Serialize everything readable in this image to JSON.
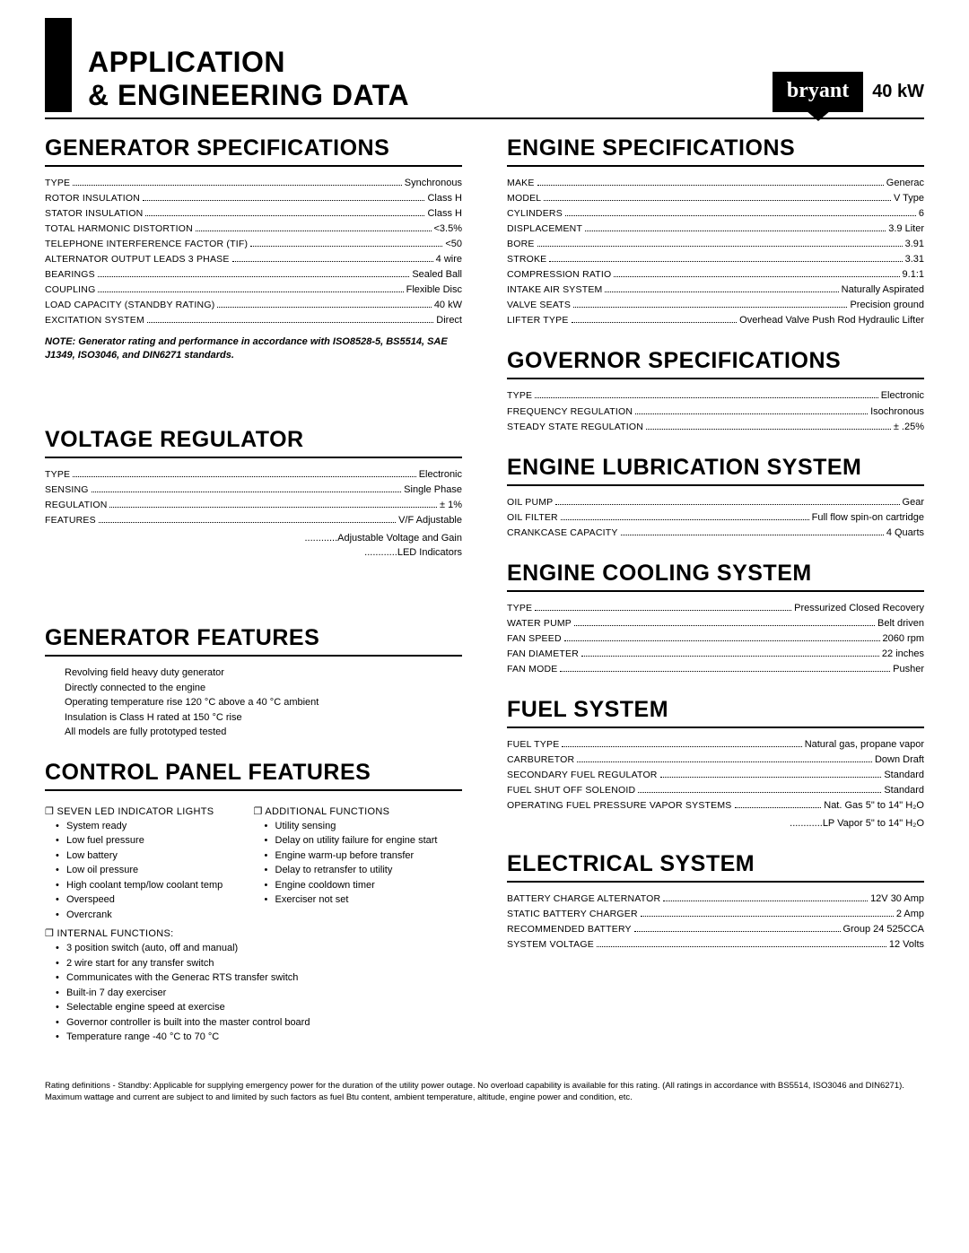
{
  "header": {
    "title_line1": "APPLICATION",
    "title_line2": "& ENGINEERING DATA",
    "logo_text": "bryant",
    "power": "40 kW"
  },
  "left": {
    "sec1_title": "GENERATOR SPECIFICATIONS",
    "sec1_rows": [
      {
        "l": "TYPE",
        "v": "Synchronous"
      },
      {
        "l": "ROTOR INSULATION",
        "v": "Class H"
      },
      {
        "l": "STATOR INSULATION",
        "v": "Class H"
      },
      {
        "l": "TOTAL HARMONIC DISTORTION",
        "v": "<3.5%"
      },
      {
        "l": "TELEPHONE INTERFERENCE FACTOR (TIF)",
        "v": "<50"
      },
      {
        "l": "ALTERNATOR OUTPUT LEADS 3 PHASE",
        "v": "4 wire"
      },
      {
        "l": "BEARINGS",
        "v": "Sealed Ball"
      },
      {
        "l": "COUPLING",
        "v": "Flexible Disc"
      },
      {
        "l": "LOAD CAPACITY (STANDBY RATING)",
        "v": "40 kW"
      },
      {
        "l": "EXCITATION SYSTEM",
        "v": "Direct"
      }
    ],
    "sec1_note": "NOTE: Generator rating and performance in accordance with ISO8528-5, BS5514, SAE J1349, ISO3046, and DIN6271 standards.",
    "sec2_title": "VOLTAGE REGULATOR",
    "sec2_rows": [
      {
        "l": "TYPE",
        "v": "Electronic"
      },
      {
        "l": "SENSING",
        "v": "Single Phase"
      },
      {
        "l": "REGULATION",
        "v": "± 1%"
      },
      {
        "l": "FEATURES",
        "v": "V/F Adjustable"
      }
    ],
    "sec2_cont": [
      "Adjustable Voltage and Gain",
      "LED Indicators"
    ],
    "sec3_title": "GENERATOR FEATURES",
    "sec3_items": [
      "Revolving field heavy duty generator",
      "Directly connected to the engine",
      "Operating temperature rise 120 °C above a 40 °C ambient",
      "Insulation is Class H rated at 150 °C rise",
      "All models are fully prototyped tested"
    ],
    "sec4_title": "CONTROL PANEL FEATURES",
    "sec4_group1_head": "SEVEN LED INDICATOR LIGHTS",
    "sec4_group1_items": [
      "System ready",
      "Low fuel pressure",
      "Low battery",
      "Low oil pressure",
      "High coolant temp/low coolant temp",
      "Overspeed",
      "Overcrank"
    ],
    "sec4_group2_head": "ADDITIONAL FUNCTIONS",
    "sec4_group2_items": [
      "Utility sensing",
      "Delay on utility failure for engine start",
      "Engine warm-up before transfer",
      "Delay to retransfer to utility",
      "Engine cooldown timer",
      "Exerciser not set"
    ],
    "sec4_group3_head": "INTERNAL FUNCTIONS:",
    "sec4_group3_items": [
      "3 position switch (auto, off and manual)",
      "2 wire start for any transfer switch",
      "Communicates with the Generac RTS transfer switch",
      "Built-in 7 day exerciser",
      "Selectable engine speed at exercise",
      "Governor controller is built into the master control board",
      "Temperature range -40 °C to 70 °C"
    ]
  },
  "right": {
    "sec1_title": "ENGINE SPECIFICATIONS",
    "sec1_rows": [
      {
        "l": "MAKE",
        "v": "Generac"
      },
      {
        "l": "MODEL",
        "v": "V Type"
      },
      {
        "l": "CYLINDERS",
        "v": "6"
      },
      {
        "l": "DISPLACEMENT",
        "v": "3.9 Liter"
      },
      {
        "l": "BORE",
        "v": "3.91"
      },
      {
        "l": "STROKE",
        "v": "3.31"
      },
      {
        "l": "COMPRESSION RATIO",
        "v": "9.1:1"
      },
      {
        "l": "INTAKE AIR SYSTEM",
        "v": "Naturally Aspirated"
      },
      {
        "l": "VALVE SEATS",
        "v": "Precision ground"
      },
      {
        "l": "LIFTER TYPE",
        "v": "Overhead Valve Push Rod Hydraulic Lifter"
      }
    ],
    "sec2_title": "GOVERNOR SPECIFICATIONS",
    "sec2_rows": [
      {
        "l": "TYPE",
        "v": "Electronic"
      },
      {
        "l": "FREQUENCY REGULATION",
        "v": "Isochronous"
      },
      {
        "l": "STEADY STATE REGULATION",
        "v": "± .25%"
      }
    ],
    "sec3_title": "ENGINE LUBRICATION SYSTEM",
    "sec3_rows": [
      {
        "l": "OIL PUMP",
        "v": "Gear"
      },
      {
        "l": "OIL FILTER",
        "v": "Full flow spin-on cartridge"
      },
      {
        "l": "CRANKCASE CAPACITY",
        "v": "4 Quarts"
      }
    ],
    "sec4_title": "ENGINE COOLING SYSTEM",
    "sec4_rows": [
      {
        "l": "TYPE",
        "v": "Pressurized Closed Recovery"
      },
      {
        "l": "WATER PUMP",
        "v": "Belt driven"
      },
      {
        "l": "FAN SPEED",
        "v": "2060 rpm"
      },
      {
        "l": "FAN DIAMETER",
        "v": "22 inches"
      },
      {
        "l": "FAN MODE",
        "v": "Pusher"
      }
    ],
    "sec5_title": "FUEL SYSTEM",
    "sec5_rows": [
      {
        "l": "FUEL TYPE",
        "v": "Natural gas, propane vapor"
      },
      {
        "l": "CARBURETOR",
        "v": "Down Draft"
      },
      {
        "l": "SECONDARY FUEL REGULATOR",
        "v": "Standard"
      },
      {
        "l": "FUEL SHUT OFF SOLENOID",
        "v": "Standard"
      },
      {
        "l": "OPERATING FUEL PRESSURE  VAPOR SYSTEMS",
        "v": "Nat. Gas 5\" to 14\" H₂O"
      }
    ],
    "sec5_cont": [
      "LP Vapor 5\" to 14\" H₂O"
    ],
    "sec6_title": "ELECTRICAL SYSTEM",
    "sec6_rows": [
      {
        "l": "BATTERY CHARGE ALTERNATOR",
        "v": "12V 30 Amp"
      },
      {
        "l": "STATIC BATTERY CHARGER",
        "v": "2 Amp"
      },
      {
        "l": "RECOMMENDED BATTERY",
        "v": "Group 24 525CCA"
      },
      {
        "l": "SYSTEM VOLTAGE",
        "v": "12 Volts"
      }
    ]
  },
  "footer": "Rating definitions - Standby: Applicable for supplying emergency power for the duration of the utility power outage. No overload capability is available for this rating. (All ratings in accordance with BS5514, ISO3046 and DIN6271). Maximum wattage and current are subject to and limited by such factors as fuel Btu content, ambient temperature, altitude, engine power and condition, etc."
}
